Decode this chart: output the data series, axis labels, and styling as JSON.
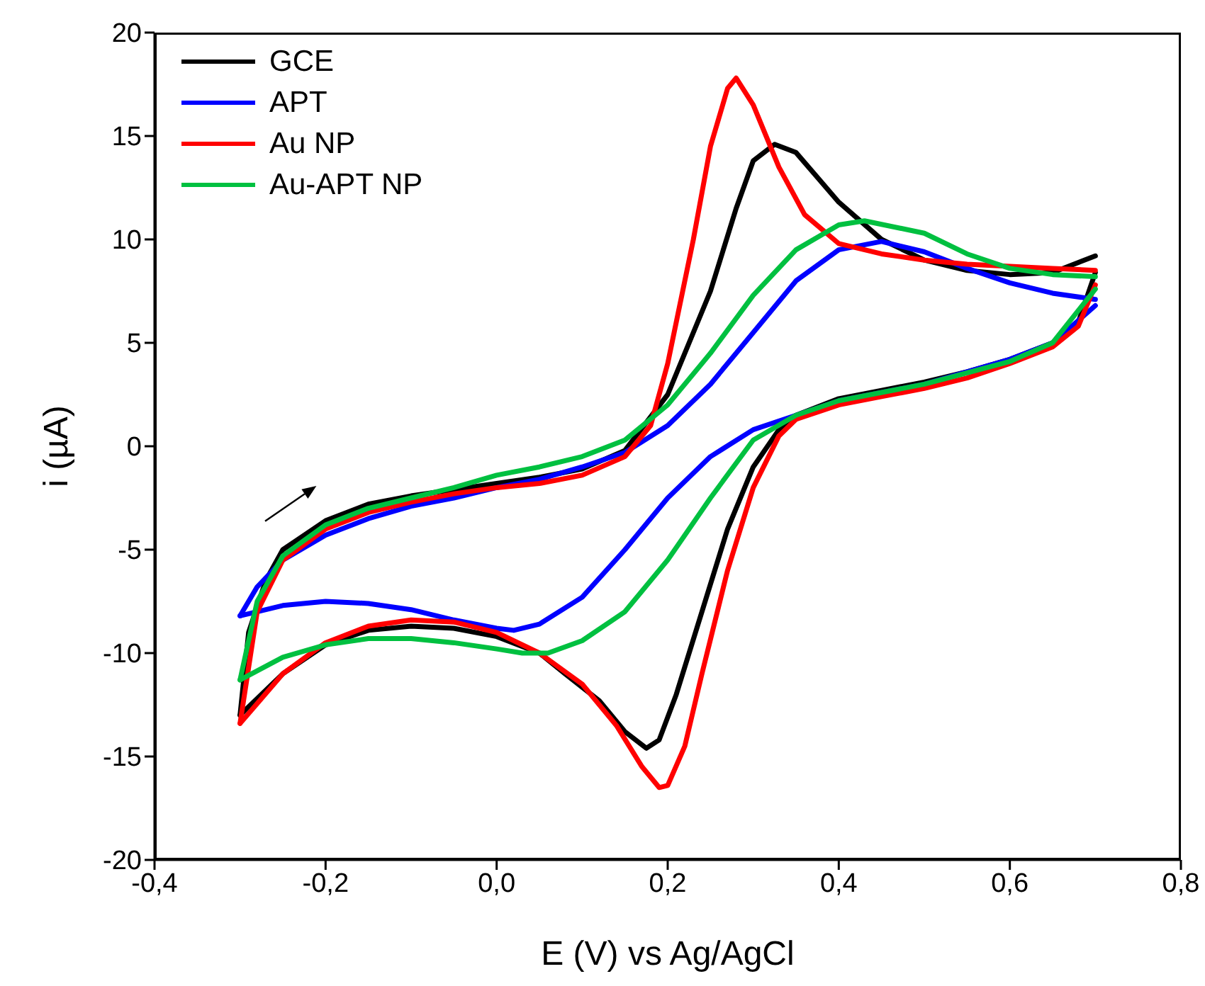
{
  "chart_data": {
    "type": "line",
    "xlabel": "E (V) vs Ag/AgCl",
    "ylabel": "i (µA)",
    "xlim": [
      -0.4,
      0.8
    ],
    "ylim": [
      -20,
      20
    ],
    "xticks": [
      {
        "value": -0.4,
        "label": "-0,4"
      },
      {
        "value": -0.2,
        "label": "-0,2"
      },
      {
        "value": 0,
        "label": "0,0"
      },
      {
        "value": 0.2,
        "label": "0,2"
      },
      {
        "value": 0.4,
        "label": "0,4"
      },
      {
        "value": 0.6,
        "label": "0,6"
      },
      {
        "value": 0.8,
        "label": "0,8"
      }
    ],
    "yticks": [
      -20,
      -15,
      -10,
      -5,
      0,
      5,
      10,
      15,
      20
    ],
    "legend": "top left",
    "marker": "none",
    "line_style": "solid",
    "series": [
      {
        "name": "GCE",
        "color": "#000000",
        "x": [
          -0.3,
          -0.29,
          -0.27,
          -0.25,
          -0.2,
          -0.15,
          -0.1,
          -0.05,
          0,
          0.05,
          0.1,
          0.15,
          0.2,
          0.25,
          0.28,
          0.3,
          0.325,
          0.35,
          0.4,
          0.45,
          0.5,
          0.55,
          0.6,
          0.65,
          0.7
        ],
        "values": [
          -13,
          -9,
          -6.5,
          -5,
          -3.6,
          -2.8,
          -2.4,
          -2.1,
          -1.8,
          -1.5,
          -1.1,
          -0.2,
          2.5,
          7.5,
          11.5,
          13.8,
          14.6,
          14.2,
          11.8,
          10,
          9,
          8.5,
          8.3,
          8.4,
          9.2
        ]
      },
      {
        "color": "#000000",
        "x": [
          -0.3,
          -0.25,
          -0.2,
          -0.15,
          -0.1,
          -0.05,
          0,
          0.05,
          0.08,
          0.12,
          0.15,
          0.175,
          0.19,
          0.21,
          0.24,
          0.27,
          0.3,
          0.33,
          0.35,
          0.4,
          0.45,
          0.5,
          0.55,
          0.6,
          0.65,
          0.68,
          0.7
        ],
        "values": [
          -13,
          -11,
          -9.6,
          -8.9,
          -8.7,
          -8.8,
          -9.2,
          -10,
          -11,
          -12.3,
          -13.8,
          -14.6,
          -14.2,
          -12,
          -8,
          -4,
          -1,
          0.8,
          1.5,
          2.3,
          2.7,
          3.1,
          3.6,
          4.2,
          5,
          6,
          8.4
        ]
      },
      {
        "name": "APT",
        "color": "#0000ff",
        "x": [
          -0.3,
          -0.28,
          -0.25,
          -0.2,
          -0.15,
          -0.1,
          -0.05,
          0,
          0.05,
          0.1,
          0.15,
          0.2,
          0.25,
          0.3,
          0.35,
          0.4,
          0.45,
          0.5,
          0.55,
          0.6,
          0.65,
          0.7
        ],
        "values": [
          -8.2,
          -6.8,
          -5.5,
          -4.3,
          -3.5,
          -2.9,
          -2.5,
          -2,
          -1.6,
          -1,
          -0.3,
          1,
          3,
          5.5,
          8,
          9.5,
          9.9,
          9.4,
          8.6,
          7.9,
          7.4,
          7.1
        ]
      },
      {
        "color": "#0000ff",
        "x": [
          -0.3,
          -0.28,
          -0.25,
          -0.2,
          -0.15,
          -0.1,
          -0.05,
          0,
          0.02,
          0.05,
          0.1,
          0.15,
          0.2,
          0.25,
          0.3,
          0.35,
          0.4,
          0.5,
          0.6,
          0.65,
          0.7
        ],
        "values": [
          -8.2,
          -8,
          -7.7,
          -7.5,
          -7.6,
          -7.9,
          -8.4,
          -8.8,
          -8.9,
          -8.6,
          -7.3,
          -5,
          -2.5,
          -0.5,
          0.8,
          1.5,
          2.2,
          3,
          4.2,
          5,
          6.8
        ]
      },
      {
        "name": "Au NP",
        "color": "#ff0000",
        "x": [
          -0.3,
          -0.28,
          -0.25,
          -0.2,
          -0.15,
          -0.1,
          -0.05,
          0,
          0.05,
          0.1,
          0.15,
          0.18,
          0.2,
          0.23,
          0.25,
          0.27,
          0.28,
          0.3,
          0.33,
          0.36,
          0.4,
          0.45,
          0.5,
          0.55,
          0.6,
          0.65,
          0.7
        ],
        "values": [
          -13.4,
          -8,
          -5.5,
          -4,
          -3.2,
          -2.7,
          -2.3,
          -2,
          -1.8,
          -1.4,
          -0.5,
          1,
          4,
          10,
          14.5,
          17.3,
          17.8,
          16.5,
          13.5,
          11.2,
          9.8,
          9.3,
          9,
          8.8,
          8.7,
          8.6,
          8.5
        ]
      },
      {
        "color": "#ff0000",
        "x": [
          -0.3,
          -0.25,
          -0.2,
          -0.15,
          -0.1,
          -0.05,
          0,
          0.05,
          0.1,
          0.14,
          0.17,
          0.19,
          0.2,
          0.22,
          0.24,
          0.27,
          0.3,
          0.33,
          0.35,
          0.4,
          0.45,
          0.5,
          0.55,
          0.6,
          0.65,
          0.68,
          0.7
        ],
        "values": [
          -13.4,
          -11,
          -9.5,
          -8.7,
          -8.4,
          -8.5,
          -9,
          -10,
          -11.5,
          -13.5,
          -15.5,
          -16.5,
          -16.4,
          -14.5,
          -11,
          -6,
          -2,
          0.5,
          1.3,
          2,
          2.4,
          2.8,
          3.3,
          4,
          4.8,
          5.8,
          7.8
        ]
      },
      {
        "name": "Au-APT NP",
        "color": "#00c040",
        "x": [
          -0.3,
          -0.28,
          -0.25,
          -0.2,
          -0.15,
          -0.1,
          -0.05,
          0,
          0.05,
          0.1,
          0.15,
          0.2,
          0.25,
          0.3,
          0.35,
          0.4,
          0.43,
          0.5,
          0.55,
          0.6,
          0.65,
          0.7
        ],
        "values": [
          -11.3,
          -7.5,
          -5.3,
          -3.8,
          -3,
          -2.5,
          -2,
          -1.4,
          -1,
          -0.5,
          0.3,
          2,
          4.5,
          7.3,
          9.5,
          10.7,
          10.9,
          10.3,
          9.3,
          8.6,
          8.3,
          8.2
        ]
      },
      {
        "color": "#00c040",
        "x": [
          -0.3,
          -0.25,
          -0.2,
          -0.15,
          -0.1,
          -0.05,
          0,
          0.03,
          0.06,
          0.1,
          0.15,
          0.2,
          0.25,
          0.3,
          0.35,
          0.4,
          0.5,
          0.6,
          0.65,
          0.7
        ],
        "values": [
          -11.3,
          -10.2,
          -9.6,
          -9.3,
          -9.3,
          -9.5,
          -9.8,
          -10,
          -10,
          -9.4,
          -8,
          -5.5,
          -2.5,
          0.3,
          1.5,
          2.2,
          3,
          4.1,
          5,
          7.6
        ]
      }
    ]
  }
}
